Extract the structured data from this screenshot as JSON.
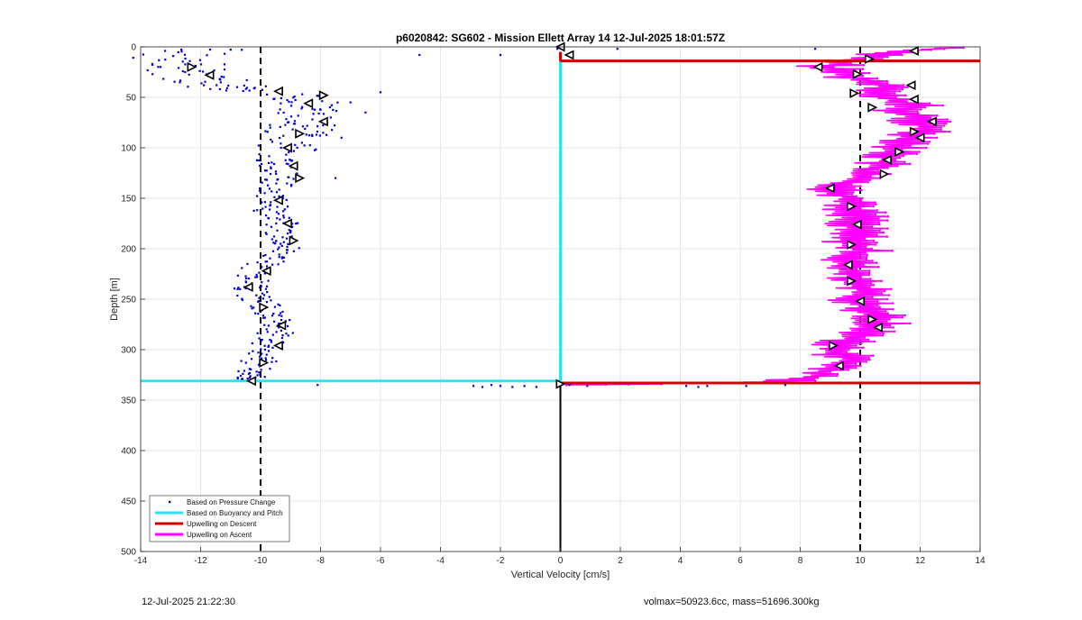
{
  "footer": {
    "timestamp": "12-Jul-2025 21:22:30",
    "info": "volmax=50923.6cc, mass=51696.300kg"
  },
  "colors": {
    "pressure": "#0000cc",
    "buoyancy": "#33e0f0",
    "descent": "#d00000",
    "ascent": "#ff00ff",
    "grid": "#e6e6e6",
    "axis": "#262626"
  },
  "chart_data": {
    "type": "scatter",
    "title": "p6020842: SG602 - Mission Ellett Array 14 12-Jul-2025 18:01:57Z",
    "xlabel": "Vertical Velocity [cm/s]",
    "ylabel": "Depth [m]",
    "xlim": [
      -14,
      14
    ],
    "ylim": [
      0,
      500
    ],
    "y_reversed": true,
    "grid": true,
    "xticks": [
      -14,
      -12,
      -10,
      -8,
      -6,
      -4,
      -2,
      0,
      2,
      4,
      6,
      8,
      10,
      12,
      14
    ],
    "yticks": [
      0,
      50,
      100,
      150,
      200,
      250,
      300,
      350,
      400,
      450,
      500
    ],
    "legend_position": "bottom-left",
    "legend": [
      {
        "label": "Based on Pressure Change",
        "style": "dot",
        "color": "#0000cc"
      },
      {
        "label": "Based on Buoyancy and Pitch",
        "style": "line",
        "color": "#33e0f0"
      },
      {
        "label": "Upwelling on Descent",
        "style": "line",
        "color": "#d00000"
      },
      {
        "label": "Upwelling on Ascent",
        "style": "line",
        "color": "#ff00ff"
      }
    ],
    "reference_lines": {
      "dashed_x": [
        -10,
        10
      ],
      "solid_x_zero_from_depth": 335
    },
    "pressure_change_profile": [
      [
        2,
        -11.5
      ],
      [
        10,
        -13.2
      ],
      [
        18,
        -12.2
      ],
      [
        26,
        -12.5
      ],
      [
        34,
        -11.6
      ],
      [
        40,
        -11.0
      ],
      [
        46,
        -9.0
      ],
      [
        54,
        -8.3
      ],
      [
        62,
        -8.4
      ],
      [
        70,
        -8.5
      ],
      [
        78,
        -8.6
      ],
      [
        86,
        -8.8
      ],
      [
        95,
        -8.9
      ],
      [
        105,
        -9.3
      ],
      [
        115,
        -9.6
      ],
      [
        125,
        -9.3
      ],
      [
        135,
        -9.4
      ],
      [
        145,
        -9.6
      ],
      [
        155,
        -9.5
      ],
      [
        165,
        -9.9
      ],
      [
        175,
        -9.3
      ],
      [
        185,
        -9.4
      ],
      [
        195,
        -9.1
      ],
      [
        205,
        -9.4
      ],
      [
        215,
        -9.9
      ],
      [
        225,
        -10.2
      ],
      [
        235,
        -10.4
      ],
      [
        245,
        -10.3
      ],
      [
        255,
        -9.9
      ],
      [
        265,
        -9.8
      ],
      [
        275,
        -9.5
      ],
      [
        285,
        -9.5
      ],
      [
        295,
        -9.8
      ],
      [
        305,
        -10.0
      ],
      [
        315,
        -10.1
      ],
      [
        325,
        -10.3
      ],
      [
        330,
        -10.3
      ]
    ],
    "pressure_change_outliers": [
      [
        2,
        -0.1
      ],
      [
        8,
        -4.7
      ],
      [
        8,
        -2.0
      ],
      [
        45,
        -6.0
      ],
      [
        55,
        -7.0
      ],
      [
        65,
        -6.5
      ],
      [
        90,
        -7.3
      ],
      [
        130,
        -7.5
      ],
      [
        335,
        -8.1
      ],
      [
        336,
        -2.9
      ],
      [
        337,
        -2.6
      ],
      [
        335,
        -2.3
      ],
      [
        336,
        -2.0
      ],
      [
        337,
        -1.6
      ],
      [
        336,
        -1.2
      ],
      [
        337,
        -0.8
      ],
      [
        335,
        0.3
      ],
      [
        336,
        0.9
      ],
      [
        336,
        4.2
      ],
      [
        337,
        4.6
      ],
      [
        336,
        4.9
      ],
      [
        336,
        6.2
      ],
      [
        335,
        7.5
      ],
      [
        2,
        8.5
      ],
      [
        2,
        1.9
      ]
    ],
    "buoyancy_pitch": {
      "segments": [
        {
          "depth_from": 5,
          "depth_to": 331,
          "x": 0
        },
        {
          "depth": 331,
          "x_from": -14,
          "x_to": 0
        }
      ]
    },
    "upwelling_descent": {
      "segments": [
        {
          "depth": 14,
          "x_from": 0,
          "x_to": 14
        },
        {
          "depth_from": 5,
          "depth_to": 14,
          "x": 0
        },
        {
          "depth": 333,
          "x_from": 0,
          "x_to": 14
        }
      ]
    },
    "upwelling_ascent_profile": [
      [
        1,
        13.1
      ],
      [
        4,
        11.5
      ],
      [
        8,
        10.6
      ],
      [
        14,
        9.6
      ],
      [
        20,
        8.8
      ],
      [
        26,
        9.5
      ],
      [
        34,
        10.2
      ],
      [
        40,
        11.3
      ],
      [
        46,
        10.4
      ],
      [
        52,
        11.1
      ],
      [
        58,
        11.7
      ],
      [
        64,
        11.3
      ],
      [
        70,
        11.9
      ],
      [
        76,
        12.0
      ],
      [
        82,
        12.3
      ],
      [
        88,
        11.9
      ],
      [
        94,
        11.7
      ],
      [
        100,
        11.2
      ],
      [
        106,
        11.1
      ],
      [
        112,
        10.9
      ],
      [
        118,
        10.6
      ],
      [
        124,
        10.2
      ],
      [
        130,
        9.9
      ],
      [
        136,
        9.5
      ],
      [
        142,
        9.2
      ],
      [
        148,
        9.6
      ],
      [
        154,
        9.9
      ],
      [
        160,
        9.7
      ],
      [
        166,
        9.9
      ],
      [
        172,
        10.0
      ],
      [
        178,
        9.8
      ],
      [
        184,
        9.9
      ],
      [
        190,
        9.9
      ],
      [
        196,
        9.7
      ],
      [
        202,
        10.0
      ],
      [
        208,
        9.8
      ],
      [
        214,
        9.6
      ],
      [
        220,
        9.6
      ],
      [
        226,
        9.8
      ],
      [
        232,
        9.7
      ],
      [
        238,
        10.0
      ],
      [
        244,
        10.2
      ],
      [
        250,
        9.9
      ],
      [
        256,
        10.3
      ],
      [
        262,
        10.4
      ],
      [
        268,
        10.5
      ],
      [
        274,
        10.6
      ],
      [
        280,
        10.3
      ],
      [
        286,
        10.0
      ],
      [
        292,
        9.6
      ],
      [
        298,
        9.1
      ],
      [
        304,
        9.4
      ],
      [
        310,
        9.7
      ],
      [
        316,
        9.3
      ],
      [
        322,
        8.8
      ],
      [
        328,
        8.3
      ],
      [
        332,
        7.0
      ],
      [
        334,
        3.0
      ],
      [
        335,
        0.2
      ]
    ],
    "descent_markers": [
      [
        0,
        0.0
      ],
      [
        8,
        0.3
      ],
      [
        20,
        -12.3
      ],
      [
        28,
        -11.7
      ],
      [
        44,
        -9.4
      ],
      [
        48,
        -7.9
      ],
      [
        56,
        -8.4
      ],
      [
        74,
        -7.9
      ],
      [
        86,
        -8.7
      ],
      [
        100,
        -9.1
      ],
      [
        118,
        -8.9
      ],
      [
        130,
        -8.7
      ],
      [
        152,
        -9.4
      ],
      [
        175,
        -9.1
      ],
      [
        192,
        -8.9
      ],
      [
        222,
        -9.8
      ],
      [
        238,
        -10.4
      ],
      [
        258,
        -9.9
      ],
      [
        276,
        -9.3
      ],
      [
        296,
        -9.4
      ],
      [
        313,
        -9.9
      ],
      [
        331,
        -10.3
      ]
    ],
    "ascent_markers": [
      [
        4,
        11.8
      ],
      [
        12,
        10.3
      ],
      [
        20,
        8.6
      ],
      [
        27,
        9.9
      ],
      [
        38,
        11.7
      ],
      [
        46,
        9.8
      ],
      [
        52,
        11.8
      ],
      [
        60,
        10.4
      ],
      [
        74,
        12.4
      ],
      [
        84,
        11.8
      ],
      [
        90,
        12.0
      ],
      [
        104,
        11.3
      ],
      [
        112,
        10.9
      ],
      [
        126,
        10.8
      ],
      [
        140,
        9.0
      ],
      [
        158,
        9.7
      ],
      [
        176,
        9.9
      ],
      [
        196,
        9.7
      ],
      [
        216,
        9.6
      ],
      [
        232,
        9.7
      ],
      [
        252,
        10.0
      ],
      [
        270,
        10.4
      ],
      [
        278,
        10.6
      ],
      [
        296,
        9.1
      ],
      [
        316,
        9.3
      ],
      [
        334,
        0.0
      ]
    ]
  }
}
